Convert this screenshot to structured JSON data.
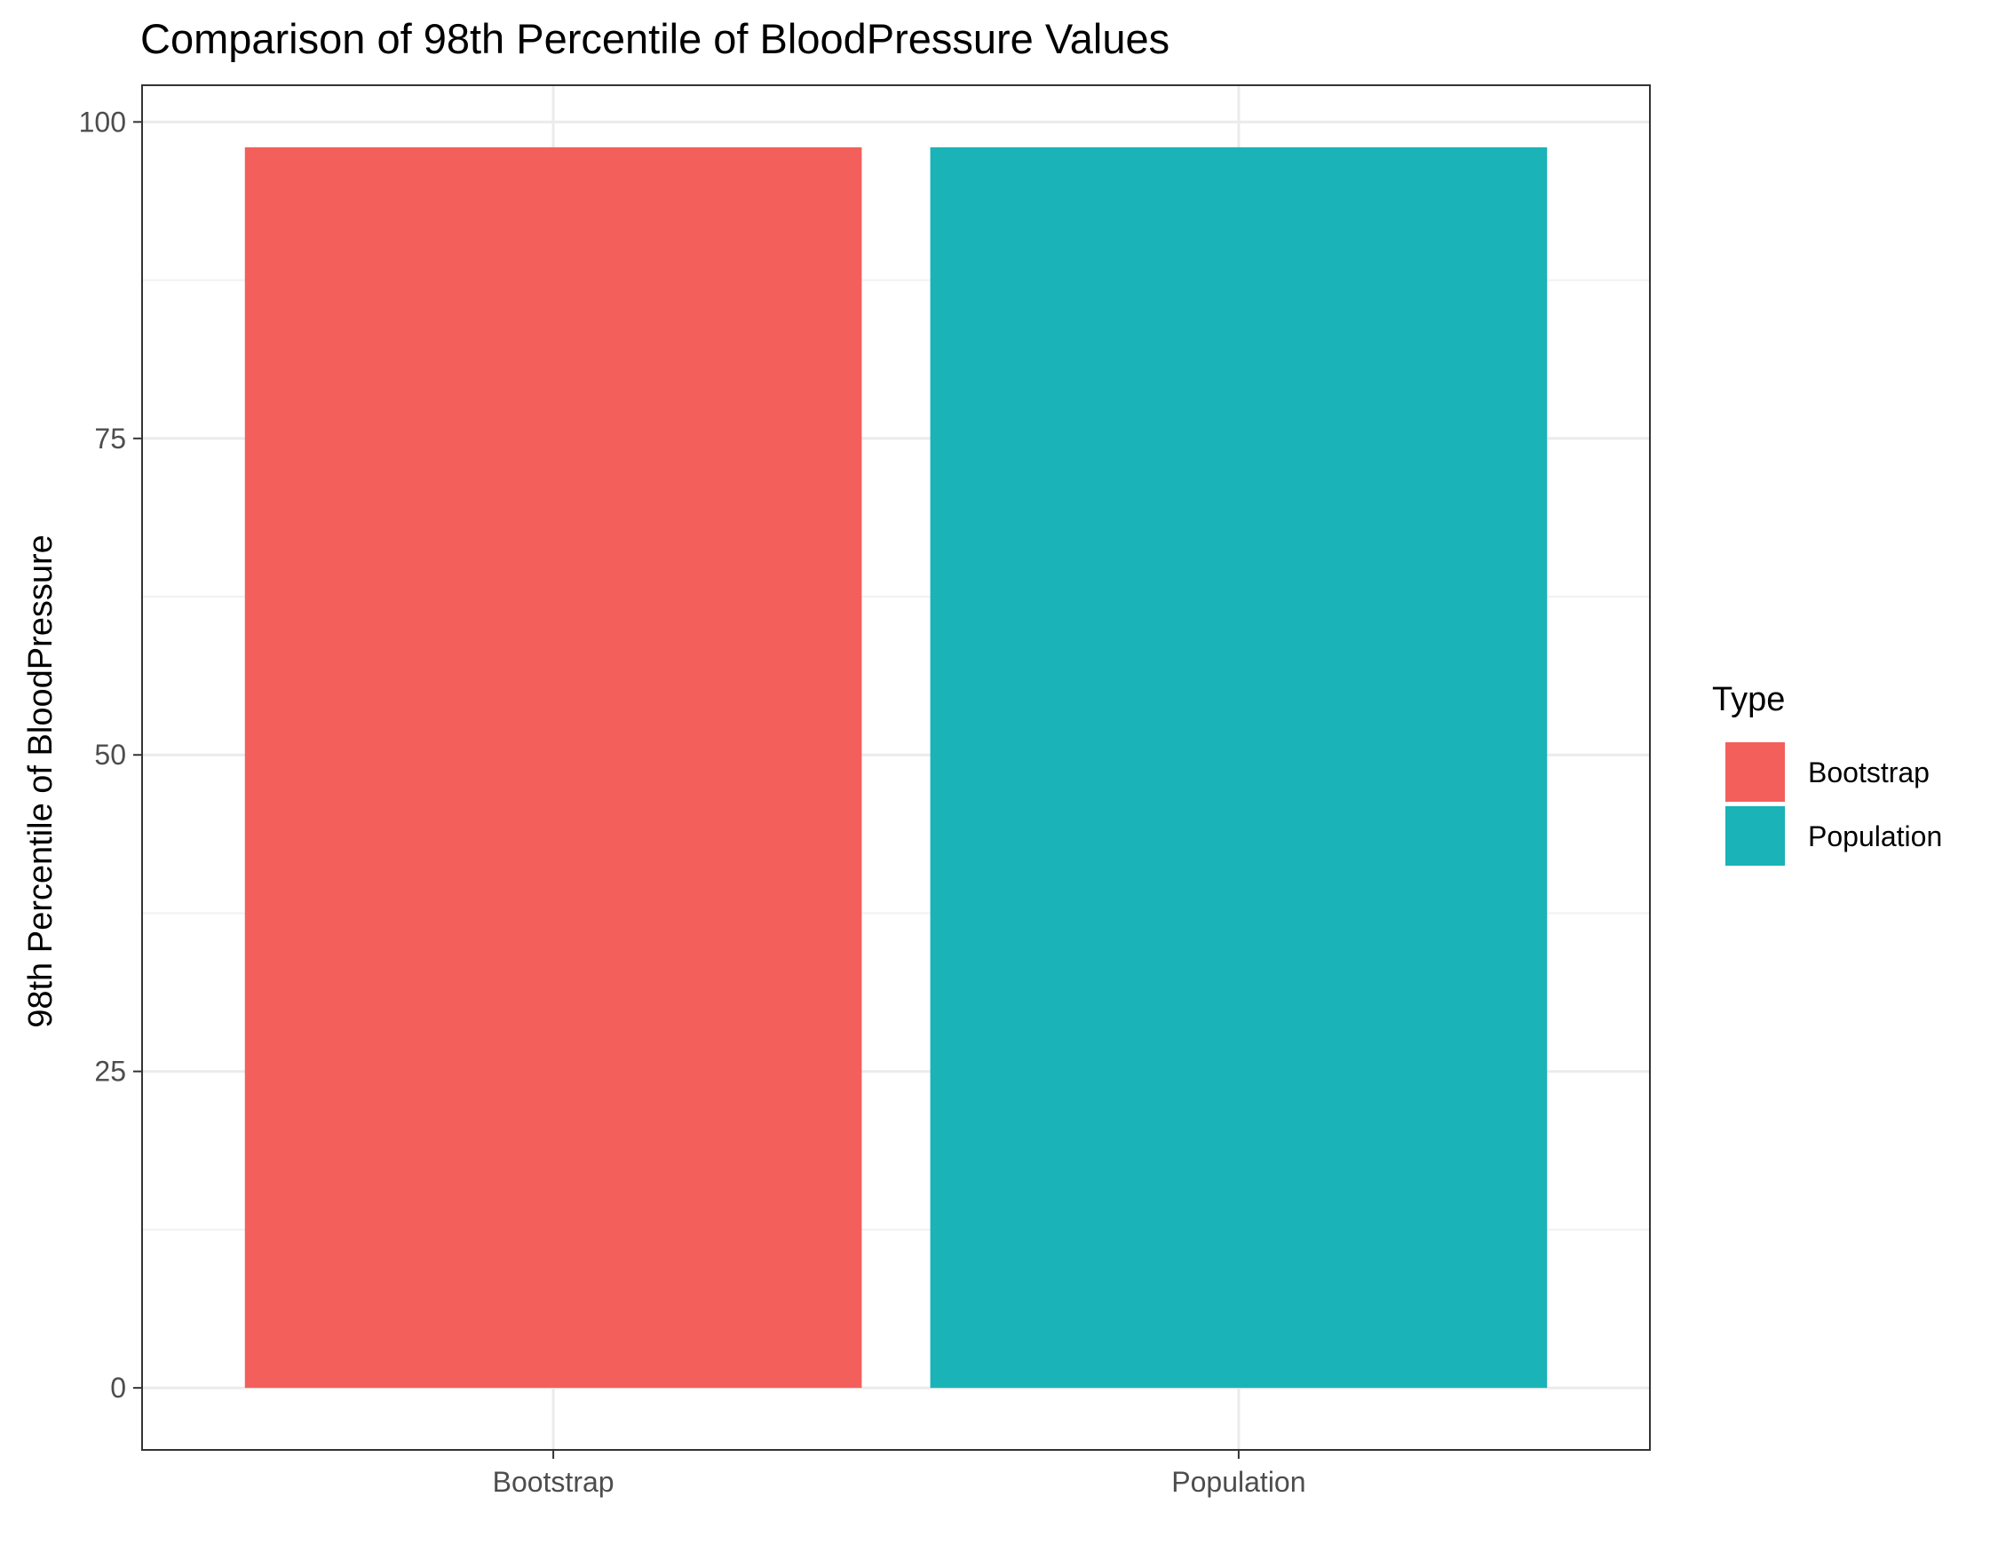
{
  "chart_data": {
    "type": "bar",
    "title": "Comparison of 98th Percentile of BloodPressure Values",
    "xlabel": "",
    "ylabel": "98th Percentile of BloodPressure",
    "categories": [
      "Bootstrap",
      "Population"
    ],
    "values": [
      98,
      98
    ],
    "colors": [
      "#F35F5B",
      "#1AB3B7"
    ],
    "ylim": [
      -4.9,
      102.9
    ],
    "yticks": [
      0,
      25,
      50,
      75,
      100
    ],
    "grid": true,
    "legend": {
      "title": "Type",
      "position": "right",
      "entries": [
        "Bootstrap",
        "Population"
      ]
    }
  },
  "theme": {
    "panel_border": "#333333",
    "grid_major": "#ebebeb",
    "grid_minor": "#f2f2f2",
    "tick_color": "#333333",
    "tick_label_color": "#4d4d4d"
  }
}
